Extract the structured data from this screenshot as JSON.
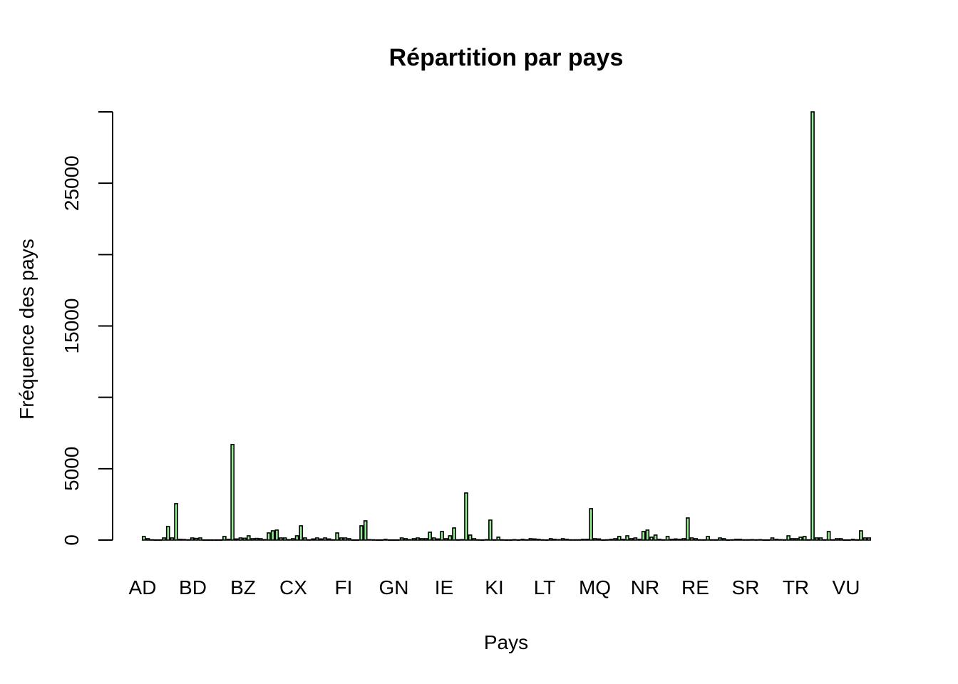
{
  "chart_data": {
    "type": "bar",
    "title": "Répartition par pays",
    "xlabel": "Pays",
    "ylabel": "Fréquence des pays",
    "ylim": [
      0,
      30000
    ],
    "yticks": [
      0,
      5000,
      10000,
      15000,
      20000,
      25000
    ],
    "yticklabels": [
      "0",
      "5000",
      "",
      "15000",
      "",
      "25000"
    ],
    "bar_color": "#90ee90",
    "xticklabels": [
      "AD",
      "BD",
      "BZ",
      "CX",
      "FI",
      "GN",
      "IE",
      "KI",
      "LT",
      "MQ",
      "NR",
      "RE",
      "SR",
      "TR",
      "VU"
    ],
    "values": [
      250,
      100,
      20,
      10,
      10,
      150,
      950,
      150,
      2550,
      50,
      40,
      20,
      150,
      120,
      150,
      10,
      10,
      10,
      10,
      10,
      250,
      50,
      6700,
      80,
      150,
      130,
      300,
      100,
      120,
      100,
      30,
      500,
      650,
      700,
      150,
      150,
      30,
      100,
      300,
      1000,
      150,
      20,
      80,
      150,
      80,
      150,
      80,
      20,
      500,
      150,
      150,
      100,
      10,
      10,
      1000,
      1350,
      30,
      20,
      10,
      10,
      50,
      10,
      10,
      10,
      150,
      100,
      30,
      100,
      150,
      100,
      100,
      550,
      150,
      80,
      600,
      100,
      300,
      850,
      20,
      30,
      3300,
      350,
      100,
      20,
      10,
      30,
      1400,
      20,
      200,
      20,
      10,
      10,
      30,
      10,
      50,
      20,
      100,
      80,
      50,
      20,
      10,
      100,
      50,
      30,
      100,
      50,
      20,
      20,
      20,
      50,
      50,
      2200,
      100,
      80,
      10,
      20,
      50,
      100,
      250,
      50,
      300,
      100,
      150,
      50,
      600,
      700,
      200,
      350,
      50,
      20,
      250,
      50,
      80,
      50,
      100,
      1550,
      150,
      100,
      20,
      20,
      250,
      20,
      20,
      150,
      100,
      10,
      20,
      50,
      50,
      20,
      20,
      30,
      20,
      30,
      10,
      10,
      150,
      50,
      30,
      20,
      300,
      100,
      100,
      200,
      250,
      20,
      30000,
      150,
      150,
      20,
      600,
      20,
      100,
      100,
      10,
      10,
      50,
      20,
      650,
      150,
      150
    ]
  }
}
